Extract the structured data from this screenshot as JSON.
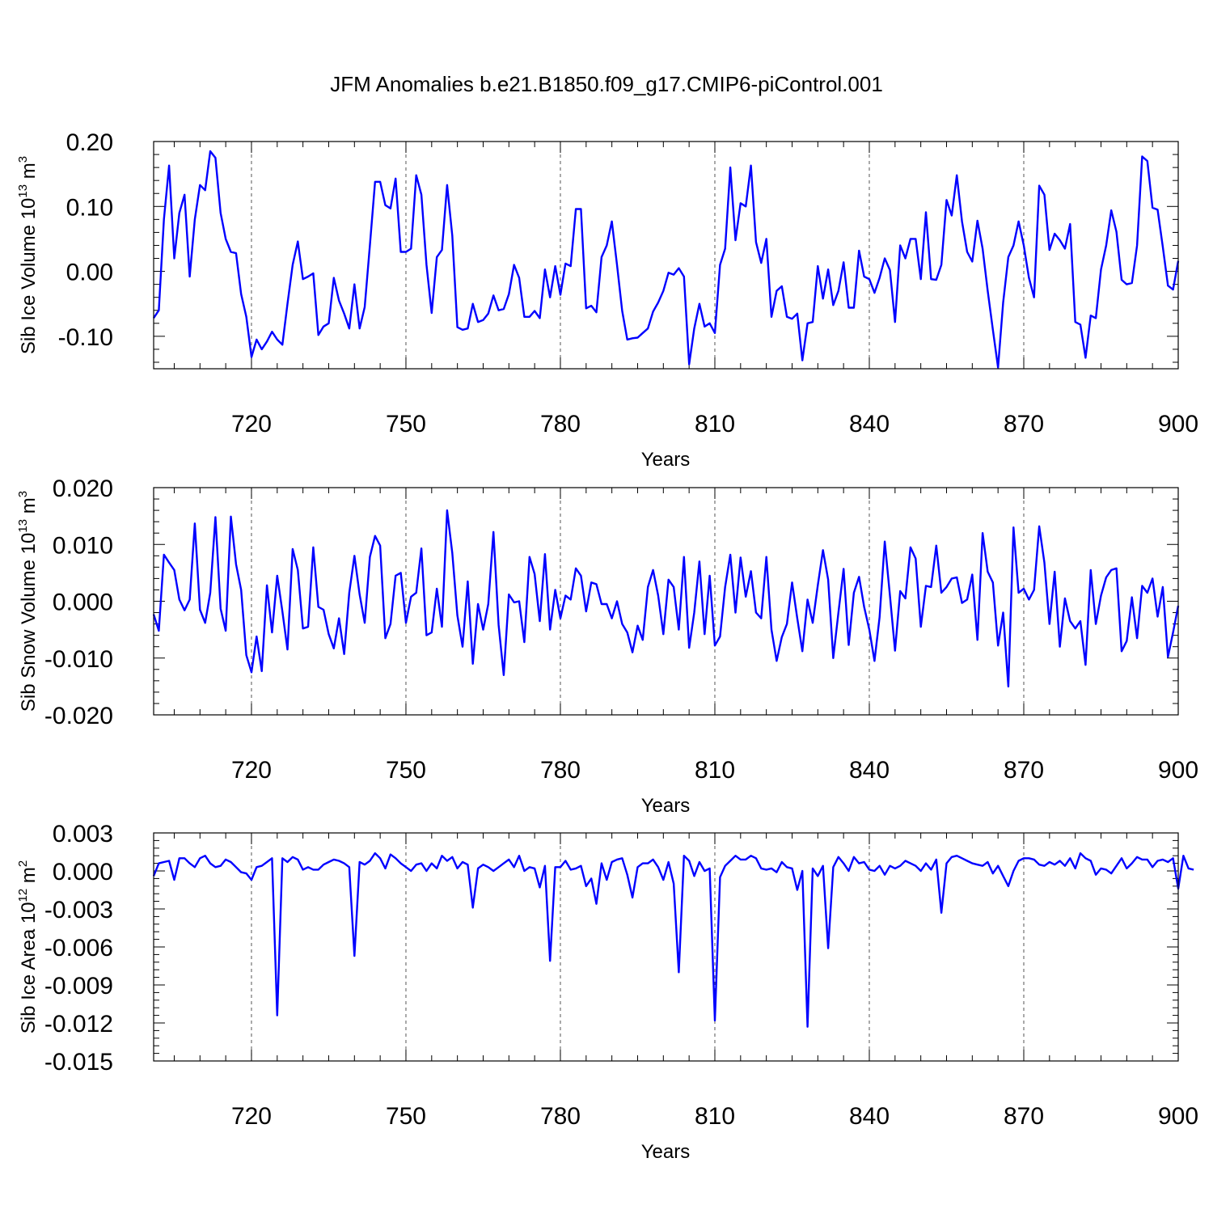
{
  "page_title": "JFM Anomalies b.e21.B1850.f09_g17.CMIP6-piControl.001",
  "colors": {
    "line": "#0000ff",
    "axis": "#000000",
    "grid": "#555555"
  },
  "chart_data": [
    {
      "type": "line",
      "title": "JFM Anomalies b.e21.B1850.f09_g17.CMIP6-piControl.001",
      "xlabel": "Years",
      "ylabel": "Sib Ice Volume 10^13 m^3",
      "ylabel_parts": {
        "base": "Sib Ice Volume 10",
        "exp1": "13",
        "unit": " m",
        "exp2": "3"
      },
      "xlim": [
        701,
        900
      ],
      "ylim": [
        -0.15,
        0.2
      ],
      "xticks": [
        720,
        750,
        780,
        810,
        840,
        870,
        900
      ],
      "xtick_labels": [
        "720",
        "750",
        "780",
        "810",
        "840",
        "870",
        "900"
      ],
      "yticks": [
        -0.1,
        0.0,
        0.1,
        0.2
      ],
      "ytick_labels": [
        "-0.10",
        "0.00",
        "0.10",
        "0.20"
      ],
      "grid": "dashed vertical at major x ticks",
      "series": [
        {
          "name": "Sib Ice Volume",
          "x_start": 701,
          "x_step": 1,
          "values": [
            -0.072,
            -0.06,
            0.08,
            0.163,
            0.02,
            0.09,
            0.118,
            -0.008,
            0.08,
            0.133,
            0.125,
            0.185,
            0.175,
            0.09,
            0.05,
            0.03,
            0.028,
            -0.035,
            -0.07,
            -0.132,
            -0.105,
            -0.12,
            -0.108,
            -0.093,
            -0.105,
            -0.113,
            -0.05,
            0.01,
            0.046,
            -0.012,
            -0.008,
            -0.003,
            -0.098,
            -0.085,
            -0.08,
            -0.01,
            -0.045,
            -0.065,
            -0.088,
            -0.02,
            -0.088,
            -0.055,
            0.04,
            0.138,
            0.138,
            0.102,
            0.097,
            0.143,
            0.03,
            0.03,
            0.035,
            0.148,
            0.118,
            0.01,
            -0.064,
            0.022,
            0.033,
            0.133,
            0.055,
            -0.086,
            -0.09,
            -0.088,
            -0.05,
            -0.078,
            -0.075,
            -0.065,
            -0.037,
            -0.06,
            -0.058,
            -0.035,
            0.01,
            -0.01,
            -0.07,
            -0.07,
            -0.061,
            -0.072,
            0.003,
            -0.04,
            0.008,
            -0.036,
            0.012,
            0.008,
            0.096,
            0.096,
            -0.057,
            -0.053,
            -0.063,
            0.022,
            0.04,
            0.077,
            0.01,
            -0.061,
            -0.105,
            -0.103,
            -0.102,
            -0.095,
            -0.088,
            -0.062,
            -0.048,
            -0.03,
            -0.002,
            -0.005,
            0.005,
            -0.008,
            -0.143,
            -0.088,
            -0.05,
            -0.085,
            -0.08,
            -0.095,
            0.01,
            0.035,
            0.16,
            0.048,
            0.105,
            0.1,
            0.163,
            0.045,
            0.013,
            0.05,
            -0.07,
            -0.03,
            -0.023,
            -0.07,
            -0.073,
            -0.065,
            -0.137,
            -0.08,
            -0.078,
            0.008,
            -0.042,
            0.003,
            -0.052,
            -0.03,
            0.014,
            -0.056,
            -0.056,
            0.032,
            -0.008,
            -0.012,
            -0.033,
            -0.01,
            0.02,
            0.002,
            -0.078,
            0.04,
            0.02,
            0.05,
            0.05,
            -0.012,
            0.091,
            -0.012,
            -0.013,
            0.01,
            0.11,
            0.086,
            0.148,
            0.077,
            0.03,
            0.015,
            0.078,
            0.035,
            -0.03,
            -0.09,
            -0.148,
            -0.048,
            0.022,
            0.04,
            0.077,
            0.04,
            -0.01,
            -0.04,
            0.132,
            0.118,
            0.033,
            0.058,
            0.048,
            0.035,
            0.073,
            -0.078,
            -0.082,
            -0.133,
            -0.068,
            -0.072,
            0.003,
            0.04,
            0.094,
            0.061,
            -0.013,
            -0.02,
            -0.018,
            0.04,
            0.177,
            0.17,
            0.098,
            0.095,
            0.038,
            -0.022,
            -0.028,
            0.016
          ]
        }
      ]
    },
    {
      "type": "line",
      "xlabel": "Years",
      "ylabel": "Sib Snow Volume 10^13 m^3",
      "ylabel_parts": {
        "base": "Sib Snow Volume 10",
        "exp1": "13",
        "unit": " m",
        "exp2": "3"
      },
      "xlim": [
        701,
        900
      ],
      "ylim": [
        -0.02,
        0.02
      ],
      "xticks": [
        720,
        750,
        780,
        810,
        840,
        870,
        900
      ],
      "xtick_labels": [
        "720",
        "750",
        "780",
        "810",
        "840",
        "870",
        "900"
      ],
      "yticks": [
        -0.02,
        -0.01,
        0.0,
        0.01,
        0.02
      ],
      "ytick_labels": [
        "-0.020",
        "-0.010",
        "0.000",
        "0.010",
        "0.020"
      ],
      "grid": "dashed vertical at major x ticks",
      "series": [
        {
          "name": "Sib Snow Volume",
          "x_start": 701,
          "x_step": 1,
          "values": [
            -0.0023,
            -0.0052,
            0.0082,
            0.0068,
            0.0055,
            0.0003,
            -0.0016,
            0.0003,
            0.0137,
            -0.0015,
            -0.0038,
            0.0015,
            0.0148,
            -0.0013,
            -0.0052,
            0.0149,
            0.0065,
            0.002,
            -0.0095,
            -0.0125,
            -0.0062,
            -0.0123,
            0.0028,
            -0.0055,
            0.0045,
            -0.0018,
            -0.0085,
            0.0092,
            0.0055,
            -0.0048,
            -0.0045,
            0.0095,
            -0.001,
            -0.0015,
            -0.0058,
            -0.0083,
            -0.003,
            -0.0093,
            0.0015,
            0.008,
            0.0012,
            -0.0038,
            0.0078,
            0.0115,
            0.0098,
            -0.0065,
            -0.004,
            0.0045,
            0.005,
            -0.0038,
            0.0008,
            0.0015,
            0.0093,
            -0.006,
            -0.0055,
            0.0022,
            -0.0045,
            0.016,
            0.0085,
            -0.0025,
            -0.008,
            0.0035,
            -0.011,
            -0.0005,
            -0.005,
            -0.0005,
            0.0122,
            -0.0042,
            -0.013,
            0.0012,
            -0.0002,
            0.0,
            -0.0072,
            0.0078,
            0.0048,
            -0.0035,
            0.0083,
            -0.005,
            0.002,
            -0.003,
            0.001,
            0.0003,
            0.0058,
            0.0045,
            -0.0018,
            0.0033,
            0.003,
            -0.0005,
            -0.0005,
            -0.003,
            0.0,
            -0.004,
            -0.0055,
            -0.009,
            -0.0043,
            -0.0068,
            0.0025,
            0.0055,
            0.001,
            -0.0058,
            0.0038,
            0.0025,
            -0.005,
            0.0078,
            -0.0082,
            -0.002,
            0.007,
            -0.0058,
            0.0045,
            -0.0078,
            -0.0062,
            0.0025,
            0.0082,
            -0.002,
            0.0077,
            0.0008,
            0.0053,
            -0.002,
            -0.003,
            0.0078,
            -0.005,
            -0.0105,
            -0.0063,
            -0.004,
            0.0033,
            -0.003,
            -0.0088,
            0.0003,
            -0.0038,
            0.0028,
            0.009,
            0.0038,
            -0.01,
            -0.002,
            0.0057,
            -0.0077,
            0.0015,
            0.0043,
            -0.001,
            -0.005,
            -0.0105,
            -0.0028,
            0.0105,
            0.001,
            -0.0087,
            0.0018,
            0.0005,
            0.0095,
            0.0075,
            -0.0045,
            0.0027,
            0.0025,
            0.0098,
            0.0015,
            0.0025,
            0.004,
            0.0042,
            -0.0003,
            0.0003,
            0.0047,
            -0.0068,
            0.012,
            0.0052,
            0.0033,
            -0.0078,
            -0.002,
            -0.015,
            0.013,
            0.0015,
            0.0022,
            0.0003,
            0.002,
            0.0132,
            0.0068,
            -0.004,
            0.0052,
            -0.008,
            0.0005,
            -0.0035,
            -0.0048,
            -0.0035,
            -0.0112,
            0.0055,
            -0.004,
            0.001,
            0.0042,
            0.0055,
            0.0058,
            -0.0088,
            -0.007,
            0.0007,
            -0.0065,
            0.0027,
            0.0015,
            0.004,
            -0.0027,
            0.0025,
            -0.0098,
            -0.0055,
            -0.0008
          ]
        }
      ]
    },
    {
      "type": "line",
      "xlabel": "Years",
      "ylabel": "Sib Ice Area 10^12 m^2",
      "ylabel_parts": {
        "base": "Sib Ice Area 10",
        "exp1": "12",
        "unit": " m",
        "exp2": "2"
      },
      "xlim": [
        701,
        900
      ],
      "ylim": [
        -0.015,
        0.003
      ],
      "xticks": [
        720,
        750,
        780,
        810,
        840,
        870,
        900
      ],
      "xtick_labels": [
        "720",
        "750",
        "780",
        "810",
        "840",
        "870",
        "900"
      ],
      "yticks": [
        -0.015,
        -0.012,
        -0.009,
        -0.006,
        -0.003,
        0.0,
        0.003
      ],
      "ytick_labels": [
        "-0.015",
        "-0.012",
        "-0.009",
        "-0.006",
        "-0.003",
        "0.000",
        "0.003"
      ],
      "grid": "dashed vertical at major x ticks",
      "series": [
        {
          "name": "Sib Ice Area",
          "x_start": 701,
          "x_step": 1,
          "values": [
            -0.0004,
            0.0006,
            0.0007,
            0.0008,
            -0.0007,
            0.001,
            0.001,
            0.0006,
            0.0003,
            0.001,
            0.0012,
            0.0006,
            0.0003,
            0.0004,
            0.0009,
            0.0007,
            0.0003,
            -0.0001,
            -0.0002,
            -0.0007,
            0.0003,
            0.0004,
            0.0007,
            0.001,
            -0.0114,
            0.001,
            0.0007,
            0.0011,
            0.0009,
            0.0001,
            0.0003,
            0.0001,
            0.0001,
            0.0005,
            0.0007,
            0.0009,
            0.0008,
            0.0006,
            0.0003,
            -0.0067,
            0.0007,
            0.0005,
            0.0008,
            0.0014,
            0.001,
            0.0002,
            0.0013,
            0.001,
            0.0006,
            0.0003,
            0.0,
            0.0005,
            0.0006,
            0.0,
            0.0006,
            0.0002,
            0.0012,
            0.0008,
            0.0011,
            0.0002,
            0.0007,
            0.0005,
            -0.0029,
            0.0002,
            0.0005,
            0.0003,
            0.0,
            0.0003,
            0.0006,
            0.0009,
            0.0003,
            0.0012,
            0.0,
            0.0003,
            0.0002,
            -0.0013,
            0.0004,
            -0.0071,
            0.0003,
            0.0003,
            0.0008,
            0.0001,
            0.0002,
            0.0004,
            -0.0012,
            -0.0006,
            -0.0026,
            0.0006,
            -0.0007,
            0.0007,
            0.0009,
            0.001,
            -0.0003,
            -0.0021,
            0.0003,
            0.0006,
            0.0006,
            0.0009,
            0.0003,
            -0.0007,
            0.0007,
            -0.001,
            -0.008,
            0.0012,
            0.0008,
            -0.0004,
            0.0007,
            0.0,
            0.0002,
            -0.0118,
            -0.0005,
            0.0004,
            0.0008,
            0.0012,
            0.0009,
            0.0009,
            0.0012,
            0.001,
            0.0002,
            0.0001,
            0.0002,
            -0.0001,
            0.0007,
            0.0003,
            0.0002,
            -0.0015,
            0.0,
            -0.0123,
            0.0002,
            -0.0004,
            0.0004,
            -0.0061,
            0.0003,
            0.0011,
            0.0006,
            0.0,
            0.0011,
            0.0006,
            0.0007,
            0.0001,
            0.0,
            0.0004,
            -0.0003,
            0.0004,
            0.0002,
            0.0004,
            0.0008,
            0.0006,
            0.0004,
            0.0,
            0.0006,
            0.0001,
            0.0009,
            -0.0033,
            0.0006,
            0.0011,
            0.0012,
            0.001,
            0.0008,
            0.0006,
            0.0005,
            0.0004,
            0.0007,
            -0.0002,
            0.0004,
            -0.0004,
            -0.0012,
            0.0,
            0.0008,
            0.001,
            0.001,
            0.0009,
            0.0005,
            0.0004,
            0.0007,
            0.0005,
            0.0008,
            0.0004,
            0.001,
            0.0002,
            0.0014,
            0.001,
            0.0008,
            -0.0003,
            0.0002,
            0.0001,
            -0.0002,
            0.0004,
            0.001,
            0.0002,
            0.0006,
            0.0011,
            0.0009,
            0.0009,
            0.0003,
            0.0008,
            0.0009,
            0.0007,
            0.001,
            -0.0014,
            0.0012,
            0.0002,
            0.0001
          ]
        }
      ]
    }
  ]
}
